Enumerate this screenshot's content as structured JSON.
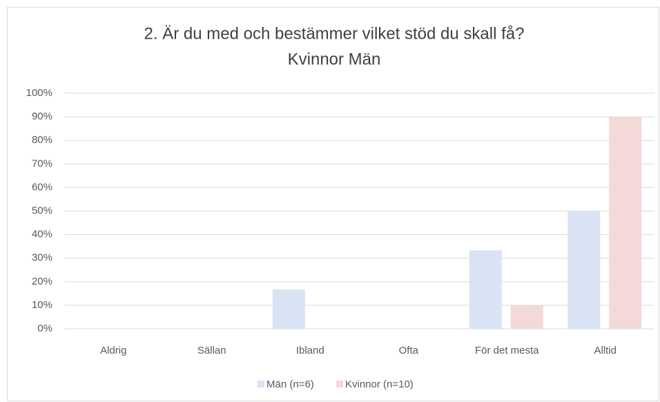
{
  "chart_data": {
    "type": "bar",
    "title": "2. Är du med och bestämmer vilket stöd du skall få?",
    "subtitle": "Kvinnor Män",
    "categories": [
      "Aldrig",
      "Sällan",
      "Ibland",
      "Ofta",
      "För det mesta",
      "Alltid"
    ],
    "series": [
      {
        "name": "Män (n=6)",
        "color": "#dae3f3",
        "values": [
          0,
          0,
          16.7,
          0,
          33.3,
          50
        ]
      },
      {
        "name": "Kvinnor  (n=10)",
        "color": "#f4d9d9",
        "values": [
          0,
          0,
          0,
          0,
          10,
          90
        ]
      }
    ],
    "ylim": [
      0,
      100
    ],
    "yticks": [
      {
        "value": 0,
        "label": "0%"
      },
      {
        "value": 10,
        "label": "10%"
      },
      {
        "value": 20,
        "label": "20%"
      },
      {
        "value": 30,
        "label": "30%"
      },
      {
        "value": 40,
        "label": "40%"
      },
      {
        "value": 50,
        "label": "50%"
      },
      {
        "value": 60,
        "label": "60%"
      },
      {
        "value": 70,
        "label": "70%"
      },
      {
        "value": 80,
        "label": "80%"
      },
      {
        "value": 90,
        "label": "90%"
      },
      {
        "value": 100,
        "label": "100%"
      }
    ],
    "grid": true,
    "legend": "bottom"
  }
}
